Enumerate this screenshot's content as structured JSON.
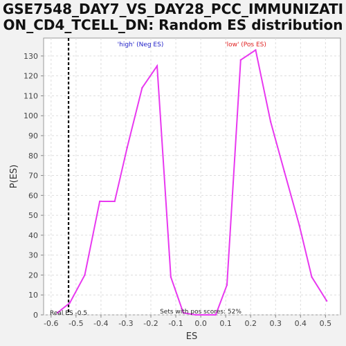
{
  "title_line1": "GSE7548_DAY7_VS_DAY28_PCC_IMMUNIZATI",
  "title_line2": "ON_CD4_TCELL_DN: Random ES distribution",
  "annotations": {
    "high_label": "'high' (Neg ES)",
    "low_label": "'low' (Pos ES)",
    "real_es_label": "Real ES -0.5",
    "pos_scores_label": "Sets with pos scores: 52%"
  },
  "colors": {
    "line": "#e838f0",
    "high_label": "#2020c8",
    "low_label": "#e02020",
    "marker": "#000000"
  },
  "chart_data": {
    "type": "line",
    "xlabel": "ES",
    "ylabel": "P(ES)",
    "xlim": [
      -0.63,
      0.56
    ],
    "ylim": [
      0,
      139
    ],
    "xticks": [
      -0.6,
      -0.5,
      -0.4,
      -0.3,
      -0.2,
      -0.1,
      0.0,
      0.1,
      0.2,
      0.3,
      0.4,
      0.5
    ],
    "yticks": [
      0,
      10,
      20,
      30,
      40,
      50,
      60,
      70,
      80,
      90,
      100,
      110,
      120,
      130
    ],
    "real_es": -0.53,
    "grid": true,
    "series": [
      {
        "x": [
          -0.575,
          -0.525,
          -0.465,
          -0.405,
          -0.345,
          -0.295,
          -0.235,
          -0.175,
          -0.12,
          -0.07,
          -0.02,
          0.03,
          0.06,
          0.105,
          0.16,
          0.22,
          0.28,
          0.335,
          0.395,
          0.445,
          0.505
        ],
        "y": [
          1,
          6,
          20,
          57,
          57,
          84,
          114,
          125,
          19,
          1,
          0,
          0,
          0,
          15,
          128,
          133,
          97,
          72,
          45,
          19,
          7
        ]
      }
    ]
  }
}
